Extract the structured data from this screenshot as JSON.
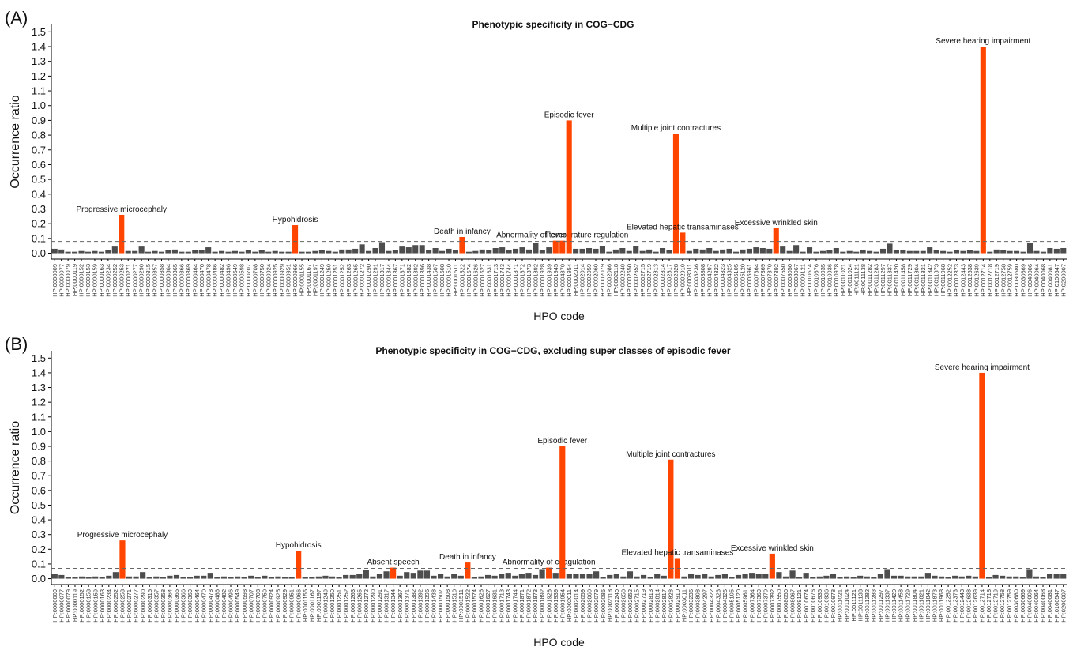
{
  "chart_data": [
    {
      "type": "bar",
      "panel_label": "(A)",
      "title": "Phenotypic specificity in COG−CDG",
      "x_label": "HPO code",
      "y_label": "Occurrence ratio",
      "categories": [
        "HP:0000009",
        "HP:0000077",
        "HP:0000079",
        "HP:0000119",
        "HP:0000152",
        "HP:0000153",
        "HP:0000159",
        "HP:0000163",
        "HP:0000234",
        "HP:0000252",
        "HP:0000253",
        "HP:0000271",
        "HP:0000277",
        "HP:0000290",
        "HP:0000315",
        "HP:0000357",
        "HP:0000358",
        "HP:0000364",
        "HP:0000365",
        "HP:0000366",
        "HP:0000369",
        "HP:0000464",
        "HP:0000470",
        "HP:0000478",
        "HP:0000486",
        "HP:0000482",
        "HP:0000496",
        "HP:0000549",
        "HP:0000598",
        "HP:0000707",
        "HP:0000708",
        "HP:0000750",
        "HP:0000924",
        "HP:0000925",
        "HP:0000929",
        "HP:0000951",
        "HP:0000966",
        "HP:0001155",
        "HP:0001167",
        "HP:0001197",
        "HP:0001249",
        "HP:0001250",
        "HP:0001251",
        "HP:0001252",
        "HP:0001263",
        "HP:0001265",
        "HP:0001272",
        "HP:0001290",
        "HP:0001291",
        "HP:0001317",
        "HP:0001344",
        "HP:0001367",
        "HP:0001371",
        "HP:0001382",
        "HP:0001392",
        "HP:0001396",
        "HP:0001438",
        "HP:0001507",
        "HP:0001508",
        "HP:0001510",
        "HP:0001511",
        "HP:0001522",
        "HP:0001574",
        "HP:0001626",
        "HP:0001627",
        "HP:0001631",
        "HP:0001713",
        "HP:0001743",
        "HP:0001744",
        "HP:0001871",
        "HP:0001872",
        "HP:0001873",
        "HP:0001892",
        "HP:0001928",
        "HP:0001939",
        "HP:0001945",
        "HP:0004370",
        "HP:0001954",
        "HP:0002011",
        "HP:0002014",
        "HP:0002059",
        "HP:0002060",
        "HP:0002079",
        "HP:0002086",
        "HP:0002118",
        "HP:0002240",
        "HP:0002650",
        "HP:0002652",
        "HP:0002715",
        "HP:0002719",
        "HP:0002813",
        "HP:0002814",
        "HP:0002817",
        "HP:0002828",
        "HP:0002910",
        "HP:0003011",
        "HP:0003236",
        "HP:0003808",
        "HP:0004297",
        "HP:0004322",
        "HP:0004323",
        "HP:0004325",
        "HP:0005105",
        "HP:0005120",
        "HP:0005961",
        "HP:0007364",
        "HP:0007369",
        "HP:0007370",
        "HP:0007392",
        "HP:0007550",
        "HP:0008050",
        "HP:0008067",
        "HP:0009121",
        "HP:0010674",
        "HP:0010676",
        "HP:0010935",
        "HP:0010936",
        "HP:0010978",
        "HP:0011021",
        "HP:0011024",
        "HP:0011121",
        "HP:0011138",
        "HP:0011282",
        "HP:0011283",
        "HP:0011297",
        "HP:0011337",
        "HP:0011420",
        "HP:0011458",
        "HP:0011729",
        "HP:0011804",
        "HP:0011821",
        "HP:0011842",
        "HP:0011873",
        "HP:0011968",
        "HP:0012252",
        "HP:0012373",
        "HP:0012443",
        "HP:0012638",
        "HP:0012639",
        "HP:0012714",
        "HP:0012718",
        "HP:0012719",
        "HP:0012758",
        "HP:0012759",
        "HP:0030680",
        "HP:0030669",
        "HP:0040006",
        "HP:0040064",
        "HP:0040068",
        "HP:0040081",
        "HP:0100547",
        "HP:0200007"
      ],
      "values": [
        0.03,
        0.025,
        0.01,
        0.01,
        0.015,
        0.01,
        0.015,
        0.01,
        0.02,
        0.045,
        0.26,
        0.015,
        0.015,
        0.045,
        0.01,
        0.015,
        0.01,
        0.02,
        0.025,
        0.01,
        0.01,
        0.02,
        0.02,
        0.04,
        0.01,
        0.015,
        0.01,
        0.015,
        0.01,
        0.02,
        0.01,
        0.02,
        0.01,
        0.015,
        0.01,
        0.01,
        0.19,
        0.01,
        0.01,
        0.015,
        0.02,
        0.015,
        0.01,
        0.025,
        0.025,
        0.03,
        0.06,
        0.015,
        0.035,
        0.075,
        0.015,
        0.02,
        0.045,
        0.04,
        0.055,
        0.055,
        0.02,
        0.035,
        0.015,
        0.03,
        0.02,
        0.11,
        0.01,
        0.015,
        0.025,
        0.02,
        0.035,
        0.04,
        0.02,
        0.03,
        0.04,
        0.025,
        0.07,
        0.02,
        0.04,
        0.085,
        0.085,
        0.9,
        0.03,
        0.03,
        0.035,
        0.03,
        0.05,
        0.01,
        0.025,
        0.035,
        0.015,
        0.05,
        0.015,
        0.025,
        0.01,
        0.035,
        0.02,
        0.81,
        0.14,
        0.015,
        0.03,
        0.025,
        0.035,
        0.015,
        0.025,
        0.03,
        0.01,
        0.025,
        0.03,
        0.04,
        0.035,
        0.03,
        0.17,
        0.045,
        0.015,
        0.055,
        0.01,
        0.04,
        0.01,
        0.015,
        0.02,
        0.035,
        0.01,
        0.015,
        0.01,
        0.02,
        0.015,
        0.01,
        0.03,
        0.065,
        0.02,
        0.02,
        0.015,
        0.015,
        0.015,
        0.04,
        0.02,
        0.015,
        0.01,
        0.02,
        0.015,
        0.02,
        0.015,
        1.4,
        0.01,
        0.025,
        0.02,
        0.015,
        0.015,
        0.01,
        0.07,
        0.015,
        0.01,
        0.035,
        0.03,
        0.035
      ],
      "value_labels": [
        null,
        null,
        null,
        null,
        null,
        null,
        null,
        null,
        null,
        null,
        "Progressive microcephaly",
        null,
        null,
        null,
        null,
        null,
        null,
        null,
        null,
        null,
        null,
        null,
        null,
        null,
        null,
        null,
        null,
        null,
        null,
        null,
        null,
        null,
        null,
        null,
        null,
        null,
        "Hypohidrosis",
        null,
        null,
        null,
        null,
        null,
        null,
        null,
        null,
        null,
        null,
        null,
        null,
        null,
        null,
        null,
        null,
        null,
        null,
        null,
        null,
        null,
        null,
        null,
        null,
        "Death in infancy",
        null,
        null,
        null,
        null,
        null,
        null,
        null,
        null,
        null,
        null,
        null,
        null,
        null,
        "Fever",
        "Abnormality of temperature regulation",
        "Episodic fever",
        null,
        null,
        null,
        null,
        null,
        null,
        null,
        null,
        null,
        null,
        null,
        null,
        null,
        null,
        null,
        "Multiple joint contractures",
        "Elevated hepatic transaminases",
        null,
        null,
        null,
        null,
        null,
        null,
        null,
        null,
        null,
        null,
        null,
        null,
        null,
        "Excessive wrinkled skin",
        null,
        null,
        null,
        null,
        null,
        null,
        null,
        null,
        null,
        null,
        null,
        null,
        null,
        null,
        null,
        null,
        null,
        null,
        null,
        null,
        null,
        null,
        null,
        null,
        null,
        null,
        null,
        null,
        null,
        null,
        "Severe hearing impairment",
        null,
        null,
        null,
        null,
        null,
        null,
        null,
        null,
        null,
        null,
        null,
        null
      ],
      "color": "#4d4d4d",
      "highlight_color": "#ff4500",
      "threshold": 0.08,
      "ylim": [
        -0.04,
        1.55
      ],
      "yticks": [
        {
          "value": 0,
          "label": "0.0"
        },
        0.1,
        0.2,
        0.3,
        0.4,
        0.5,
        0.6,
        0.7,
        0.8,
        0.9,
        {
          "value": 1,
          "label": "1.0"
        },
        1.1,
        1.2,
        1.3,
        1.4,
        1.5
      ]
    },
    {
      "type": "bar",
      "panel_label": "(B)",
      "title": "Phenotypic specificity in COG−CDG, excluding super classes of episodic fever",
      "x_label": "HPO code",
      "y_label": "Occurrence ratio",
      "categories": [
        "HP:0000009",
        "HP:0000077",
        "HP:0000079",
        "HP:0000119",
        "HP:0000152",
        "HP:0000153",
        "HP:0000159",
        "HP:0000163",
        "HP:0000234",
        "HP:0000252",
        "HP:0000253",
        "HP:0000271",
        "HP:0000277",
        "HP:0000290",
        "HP:0000315",
        "HP:0000357",
        "HP:0000358",
        "HP:0000364",
        "HP:0000365",
        "HP:0000366",
        "HP:0000369",
        "HP:0000464",
        "HP:0000470",
        "HP:0000478",
        "HP:0000486",
        "HP:0000482",
        "HP:0000496",
        "HP:0000549",
        "HP:0000598",
        "HP:0000707",
        "HP:0000708",
        "HP:0000750",
        "HP:0000924",
        "HP:0000925",
        "HP:0000929",
        "HP:0000951",
        "HP:0000966",
        "HP:0001155",
        "HP:0001167",
        "HP:0001197",
        "HP:0001249",
        "HP:0001250",
        "HP:0001251",
        "HP:0001252",
        "HP:0001263",
        "HP:0001265",
        "HP:0001272",
        "HP:0001290",
        "HP:0001291",
        "HP:0001317",
        "HP:0001344",
        "HP:0001367",
        "HP:0001371",
        "HP:0001382",
        "HP:0001392",
        "HP:0001396",
        "HP:0001438",
        "HP:0001507",
        "HP:0001508",
        "HP:0001510",
        "HP:0001511",
        "HP:0001522",
        "HP:0001574",
        "HP:0001626",
        "HP:0001627",
        "HP:0001631",
        "HP:0001713",
        "HP:0001743",
        "HP:0001744",
        "HP:0001871",
        "HP:0001872",
        "HP:0001873",
        "HP:0001892",
        "HP:0001928",
        "HP:0001939",
        "HP:0001954",
        "HP:0002011",
        "HP:0002014",
        "HP:0002059",
        "HP:0002060",
        "HP:0002079",
        "HP:0002086",
        "HP:0002118",
        "HP:0002240",
        "HP:0002650",
        "HP:0002652",
        "HP:0002715",
        "HP:0002719",
        "HP:0002813",
        "HP:0002814",
        "HP:0002817",
        "HP:0002828",
        "HP:0002910",
        "HP:0003011",
        "HP:0003236",
        "HP:0003808",
        "HP:0004297",
        "HP:0004322",
        "HP:0004323",
        "HP:0004325",
        "HP:0005105",
        "HP:0005120",
        "HP:0005961",
        "HP:0007364",
        "HP:0007369",
        "HP:0007370",
        "HP:0007392",
        "HP:0007550",
        "HP:0008050",
        "HP:0008067",
        "HP:0009121",
        "HP:0010674",
        "HP:0010676",
        "HP:0010935",
        "HP:0010936",
        "HP:0010978",
        "HP:0011021",
        "HP:0011024",
        "HP:0011121",
        "HP:0011138",
        "HP:0011282",
        "HP:0011283",
        "HP:0011297",
        "HP:0011337",
        "HP:0011420",
        "HP:0011458",
        "HP:0011729",
        "HP:0011804",
        "HP:0011821",
        "HP:0011842",
        "HP:0011873",
        "HP:0011968",
        "HP:0012252",
        "HP:0012373",
        "HP:0012443",
        "HP:0012638",
        "HP:0012639",
        "HP:0012714",
        "HP:0012718",
        "HP:0012719",
        "HP:0012758",
        "HP:0012759",
        "HP:0030680",
        "HP:0030669",
        "HP:0040006",
        "HP:0040064",
        "HP:0040068",
        "HP:0040081",
        "HP:0100547",
        "HP:0200007"
      ],
      "values": [
        0.03,
        0.025,
        0.01,
        0.01,
        0.015,
        0.01,
        0.015,
        0.01,
        0.02,
        0.045,
        0.26,
        0.015,
        0.015,
        0.045,
        0.01,
        0.015,
        0.01,
        0.02,
        0.025,
        0.01,
        0.01,
        0.02,
        0.02,
        0.04,
        0.01,
        0.015,
        0.01,
        0.015,
        0.01,
        0.02,
        0.01,
        0.02,
        0.01,
        0.015,
        0.01,
        0.01,
        0.19,
        0.01,
        0.01,
        0.015,
        0.02,
        0.015,
        0.01,
        0.025,
        0.025,
        0.03,
        0.06,
        0.015,
        0.035,
        0.05,
        0.075,
        0.02,
        0.045,
        0.04,
        0.055,
        0.055,
        0.02,
        0.035,
        0.015,
        0.03,
        0.02,
        0.11,
        0.01,
        0.015,
        0.025,
        0.02,
        0.035,
        0.04,
        0.02,
        0.03,
        0.04,
        0.025,
        0.065,
        0.075,
        0.04,
        0.9,
        0.03,
        0.03,
        0.035,
        0.03,
        0.05,
        0.01,
        0.025,
        0.035,
        0.015,
        0.05,
        0.015,
        0.025,
        0.01,
        0.035,
        0.02,
        0.81,
        0.14,
        0.015,
        0.03,
        0.025,
        0.035,
        0.015,
        0.025,
        0.03,
        0.01,
        0.025,
        0.03,
        0.04,
        0.035,
        0.03,
        0.17,
        0.045,
        0.015,
        0.055,
        0.01,
        0.04,
        0.01,
        0.015,
        0.02,
        0.035,
        0.01,
        0.015,
        0.01,
        0.02,
        0.015,
        0.01,
        0.03,
        0.065,
        0.02,
        0.02,
        0.015,
        0.015,
        0.015,
        0.04,
        0.02,
        0.015,
        0.01,
        0.02,
        0.015,
        0.02,
        0.015,
        1.4,
        0.01,
        0.025,
        0.02,
        0.015,
        0.015,
        0.01,
        0.065,
        0.015,
        0.01,
        0.035,
        0.03,
        0.035
      ],
      "value_labels": [
        null,
        null,
        null,
        null,
        null,
        null,
        null,
        null,
        null,
        null,
        "Progressive microcephaly",
        null,
        null,
        null,
        null,
        null,
        null,
        null,
        null,
        null,
        null,
        null,
        null,
        null,
        null,
        null,
        null,
        null,
        null,
        null,
        null,
        null,
        null,
        null,
        null,
        null,
        "Hypohidrosis",
        null,
        null,
        null,
        null,
        null,
        null,
        null,
        null,
        null,
        null,
        null,
        null,
        null,
        "Absent speech",
        null,
        null,
        null,
        null,
        null,
        null,
        null,
        null,
        null,
        null,
        "Death in infancy",
        null,
        null,
        null,
        null,
        null,
        null,
        null,
        null,
        null,
        null,
        null,
        "Abnormality of coagulation",
        null,
        "Episodic fever",
        null,
        null,
        null,
        null,
        null,
        null,
        null,
        null,
        null,
        null,
        null,
        null,
        null,
        null,
        null,
        "Multiple joint contractures",
        "Elevated hepatic transaminases",
        null,
        null,
        null,
        null,
        null,
        null,
        null,
        null,
        null,
        null,
        null,
        null,
        null,
        "Excessive wrinkled skin",
        null,
        null,
        null,
        null,
        null,
        null,
        null,
        null,
        null,
        null,
        null,
        null,
        null,
        null,
        null,
        null,
        null,
        null,
        null,
        null,
        null,
        null,
        null,
        null,
        null,
        null,
        null,
        null,
        null,
        null,
        "Severe hearing impairment",
        null,
        null,
        null,
        null,
        null,
        null,
        null,
        null,
        null,
        null,
        null,
        null
      ],
      "color": "#4d4d4d",
      "highlight_color": "#ff4500",
      "threshold": 0.07,
      "ylim": [
        -0.04,
        1.55
      ],
      "yticks": [
        {
          "value": 0,
          "label": "0.0"
        },
        0.1,
        0.2,
        0.3,
        0.4,
        0.5,
        0.6,
        0.7,
        0.8,
        0.9,
        {
          "value": 1,
          "label": "1.0"
        },
        1.1,
        1.2,
        1.3,
        1.4,
        1.5
      ]
    }
  ]
}
